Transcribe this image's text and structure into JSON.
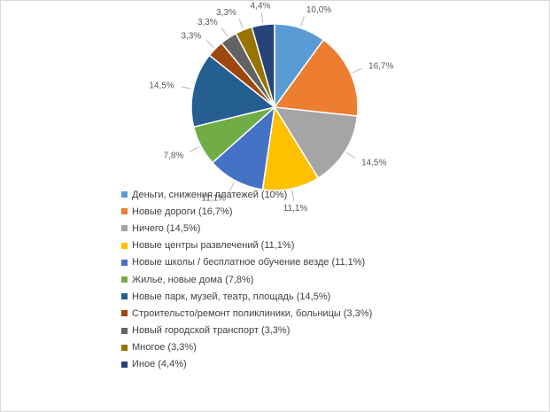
{
  "chart_data": {
    "type": "pie",
    "title": "",
    "slices": [
      {
        "label": "10,0%",
        "value": 10.0,
        "color": "#5b9bd5"
      },
      {
        "label": "16,7%",
        "value": 16.7,
        "color": "#ed7d31"
      },
      {
        "label": "14,5%",
        "value": 14.5,
        "color": "#a5a5a5"
      },
      {
        "label": "11,1%",
        "value": 11.1,
        "color": "#ffc000"
      },
      {
        "label": "11,1%",
        "value": 11.1,
        "color": "#4472c4"
      },
      {
        "label": "7,8%",
        "value": 7.8,
        "color": "#70ad47"
      },
      {
        "label": "14,5%",
        "value": 14.5,
        "color": "#255e91"
      },
      {
        "label": "3,3%",
        "value": 3.3,
        "color": "#9e480e"
      },
      {
        "label": "3,3%",
        "value": 3.3,
        "color": "#636363"
      },
      {
        "label": "3,3%",
        "value": 3.3,
        "color": "#997300"
      },
      {
        "label": "4,4%",
        "value": 4.4,
        "color": "#264478"
      }
    ],
    "legend": [
      "Деньги, снижения платежей (10%)",
      "Новые дороги (16,7%)",
      "Ничего (14,5%)",
      "Новые центры развлечений (11,1%)",
      "Новые школы / бесплатное обучение везде (11,1%)",
      "Жилье, новые дома  (7,8%)",
      "Новые парк, музей, театр, площадь  (14,5%)",
      "Строительсто/ремонт поликлиники, больницы (3,3%)",
      "Новый городской транспорт (3,3%)",
      "Многое (3,3%)",
      "Иное (4,4%)"
    ],
    "legend_position": "bottom-left"
  }
}
